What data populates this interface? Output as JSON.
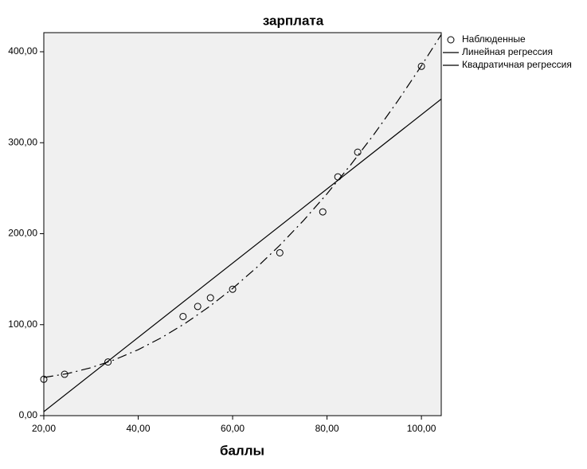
{
  "chart_data": {
    "type": "scatter",
    "title": "зарплата",
    "x_label": "баллы",
    "xlim": [
      20,
      104.2
    ],
    "ylim": [
      0,
      421
    ],
    "xticks": [
      {
        "value": 20,
        "label": "20,00"
      },
      {
        "value": 40,
        "label": "40,00"
      },
      {
        "value": 60,
        "label": "60,00"
      },
      {
        "value": 80,
        "label": "80,00"
      },
      {
        "value": 100,
        "label": "100,00"
      }
    ],
    "yticks": [
      {
        "value": 0,
        "label": "0,00"
      },
      {
        "value": 100,
        "label": "100,00"
      },
      {
        "value": 200,
        "label": "200,00"
      },
      {
        "value": 300,
        "label": "300,00"
      },
      {
        "value": 400,
        "label": "400,00"
      }
    ],
    "series": [
      {
        "name": "Наблюденные",
        "mode": "markers",
        "color": "#000000",
        "x": [
          20,
          24.4,
          33.6,
          49.5,
          52.6,
          55.3,
          60,
          70,
          79.1,
          82.3,
          86.5,
          100
        ],
        "values": [
          40,
          45.5,
          59,
          109,
          120,
          129.5,
          139,
          179,
          224,
          262.5,
          289.6,
          384
        ]
      },
      {
        "name": "Линейная регрессия",
        "mode": "line",
        "dash": "solid",
        "color": "#000000",
        "x": [
          20,
          104.2
        ],
        "values": [
          4.4,
          348
        ]
      },
      {
        "name": "Квадратичная регрессия",
        "mode": "line",
        "dash": "dashdot",
        "color": "#000000",
        "x": [
          20,
          25,
          30,
          35,
          40,
          45,
          50,
          55,
          60,
          65,
          70,
          75,
          80,
          85,
          90,
          95,
          100,
          104.2
        ],
        "values": [
          42,
          46.2,
          52.7,
          61.5,
          72.5,
          85.9,
          101.6,
          119.6,
          139.8,
          162.4,
          187.3,
          214.4,
          243.9,
          275.6,
          309.6,
          346,
          384.6,
          418.9
        ]
      }
    ]
  }
}
